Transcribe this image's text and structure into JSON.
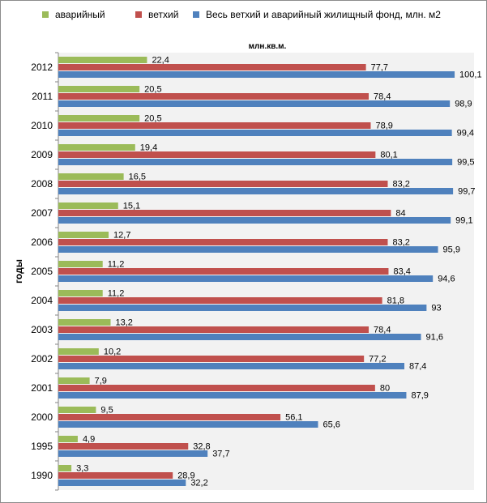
{
  "chart_data": {
    "type": "bar",
    "orientation": "horizontal",
    "unit_label": "млн.кв.м.",
    "ylabel": "годы",
    "xlim": [
      0,
      105
    ],
    "grid": false,
    "legend_position": "top",
    "categories": [
      "2012",
      "2011",
      "2010",
      "2009",
      "2008",
      "2007",
      "2006",
      "2005",
      "2004",
      "2003",
      "2002",
      "2001",
      "2000",
      "1995",
      "1990"
    ],
    "series": [
      {
        "name": "аварийный",
        "color": "#9bbb59",
        "values": [
          22.4,
          20.5,
          20.5,
          19.4,
          16.5,
          15.1,
          12.7,
          11.2,
          11.2,
          13.2,
          10.2,
          7.9,
          9.5,
          4.9,
          3.3
        ],
        "labels": [
          "22,4",
          "20,5",
          "20,5",
          "19,4",
          "16,5",
          "15,1",
          "12,7",
          "11,2",
          "11,2",
          "13,2",
          "10,2",
          "7,9",
          "9,5",
          "4,9",
          "3,3"
        ]
      },
      {
        "name": "ветхий",
        "color": "#c0504d",
        "values": [
          77.7,
          78.4,
          78.9,
          80.1,
          83.2,
          84,
          83.2,
          83.4,
          81.8,
          78.4,
          77.2,
          80,
          56.1,
          32.8,
          28.9
        ],
        "labels": [
          "77,7",
          "78,4",
          "78,9",
          "80,1",
          "83,2",
          "84",
          "83,2",
          "83,4",
          "81,8",
          "78,4",
          "77,2",
          "80",
          "56,1",
          "32,8",
          "28,9"
        ]
      },
      {
        "name": "Весь ветхий и аварийный жилищный фонд, млн. м2",
        "color": "#4f81bd",
        "values": [
          100.1,
          98.9,
          99.4,
          99.5,
          99.7,
          99.1,
          95.9,
          94.6,
          93,
          91.6,
          87.4,
          87.9,
          65.6,
          37.7,
          32.2
        ],
        "labels": [
          "100,1",
          "98,9",
          "99,4",
          "99,5",
          "99,7",
          "99,1",
          "95,9",
          "94,6",
          "93",
          "91,6",
          "87,4",
          "87,9",
          "65,6",
          "37,7",
          "32,2"
        ]
      }
    ]
  }
}
